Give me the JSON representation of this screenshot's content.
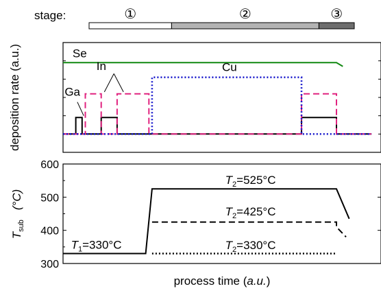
{
  "chart_data": {
    "type": "line",
    "x_axis": {
      "label_text": "process time",
      "label_unit": "a.u."
    },
    "stage_bar": {
      "label": "stage:",
      "stages": [
        {
          "label": "①",
          "start": 0.0,
          "end": 0.28,
          "color": "#ffffff"
        },
        {
          "label": "②",
          "start": 0.28,
          "end": 0.78,
          "color": "#b3b3b3"
        },
        {
          "label": "③",
          "start": 0.78,
          "end": 0.9,
          "color": "#6e6e6e"
        }
      ]
    },
    "top_panel": {
      "ylabel": "deposition rate (a.u.)",
      "ylim": [
        0,
        6
      ],
      "series": [
        {
          "name": "Se",
          "color": "#118811",
          "style": "solid",
          "x": [
            0.0,
            0.86,
            0.88
          ],
          "y": [
            4.9,
            4.9,
            4.7
          ]
        },
        {
          "name": "Ga",
          "color": "#000000",
          "style": "solid",
          "x": [
            0.0,
            0.03,
            0.03,
            0.04,
            0.04,
            0.06,
            0.06,
            0.07,
            0.07,
            0.12,
            0.12,
            0.17,
            0.17,
            0.75,
            0.75,
            0.86,
            0.86,
            0.97
          ],
          "y": [
            1,
            1,
            1,
            1,
            1.9,
            1.9,
            1,
            1,
            1,
            1,
            1.9,
            1.9,
            1,
            1,
            1.9,
            1.9,
            1,
            1
          ]
        },
        {
          "name": "In",
          "color": "#e0227f",
          "style": "dashed",
          "x": [
            0.0,
            0.07,
            0.07,
            0.12,
            0.12,
            0.17,
            0.17,
            0.27,
            0.27,
            0.75,
            0.75,
            0.86,
            0.86,
            0.97
          ],
          "y": [
            1,
            1,
            3.2,
            3.2,
            1,
            1,
            3.2,
            3.2,
            1,
            1,
            3.2,
            3.2,
            1,
            1
          ]
        },
        {
          "name": "Cu",
          "color": "#1a1acc",
          "style": "dotted",
          "x": [
            0.0,
            0.28,
            0.28,
            0.75,
            0.75,
            0.97
          ],
          "y": [
            1,
            1,
            4.1,
            4.1,
            1,
            1
          ]
        }
      ],
      "annotations": [
        {
          "text": "Se",
          "x": 0.03,
          "y": 5.2
        },
        {
          "text": "Ga",
          "x": 0.005,
          "y": 3.1
        },
        {
          "text": "In",
          "x": 0.105,
          "y": 4.5
        },
        {
          "text": "Cu",
          "x": 0.5,
          "y": 4.45
        }
      ]
    },
    "bottom_panel": {
      "ylabel_main": "T",
      "ylabel_sub": "sub",
      "ylabel_unit": "(°C)",
      "ylim": [
        300,
        600
      ],
      "yticks": [
        "300",
        "400",
        "500",
        "600"
      ],
      "series": [
        {
          "name": "T2=525°C",
          "style": "solid",
          "x": [
            0.0,
            0.26,
            0.28,
            0.86,
            0.9
          ],
          "y": [
            330,
            330,
            525,
            525,
            435
          ]
        },
        {
          "name": "T2=425°C",
          "style": "dashed",
          "x": [
            0.28,
            0.86,
            0.86,
            0.89
          ],
          "y": [
            425,
            425,
            410,
            380
          ]
        },
        {
          "name": "T2=330°C",
          "style": "dotted",
          "x": [
            0.28,
            0.86
          ],
          "y": [
            330,
            330
          ]
        }
      ],
      "annotations": [
        {
          "pre": "T",
          "sub": "1",
          "post": "=330°C",
          "x": 0.025,
          "y": 345
        },
        {
          "pre": "T",
          "sub": "2",
          "post": "=525°C",
          "x": 0.51,
          "y": 540
        },
        {
          "pre": "T",
          "sub": "2",
          "post": "=425°C",
          "x": 0.51,
          "y": 445
        },
        {
          "pre": "T",
          "sub": "2",
          "post": "=330°C",
          "x": 0.51,
          "y": 343
        }
      ]
    }
  }
}
